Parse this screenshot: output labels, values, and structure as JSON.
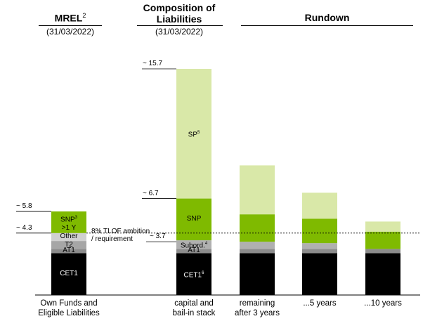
{
  "headers": {
    "mrel_title": "MREL",
    "mrel_sup": "2",
    "mrel_date": "(31/03/2022)",
    "comp_title_1": "Composition of",
    "comp_title_2": "Liabilities",
    "comp_date": "(31/03/2022)",
    "rundown_title": "Rundown"
  },
  "annotation": {
    "line1": "8% TLOF ambition",
    "line2": "/ requirement",
    "value": 4.3
  },
  "colors": {
    "cet1": "#000000",
    "at1": "#8c8c8c",
    "t2": "#a6a6a6",
    "other": "#d0d0d0",
    "subord": "#b0b0b0",
    "snp": "#7fba00",
    "sp": "#d9e8a8"
  },
  "chart_data": {
    "type": "bar",
    "stacked": true,
    "categories": [
      "Own Funds and\nEligible Liabilities",
      "capital and\nbail-in stack",
      "remaining\nafter 3 years",
      "...5 years",
      "...10 years"
    ],
    "ylim": [
      0,
      16.5
    ],
    "grid": false,
    "y_markers": [
      {
        "label": "~ 15.7",
        "value": 15.7
      },
      {
        "label": "~ 6.7",
        "value": 6.7
      },
      {
        "label": "~ 5.8",
        "value": 5.8
      },
      {
        "label": "~ 4.3",
        "value": 4.3
      },
      {
        "label": "~ 3.7",
        "value": 3.7
      }
    ],
    "bars": [
      {
        "segments": [
          {
            "key": "cet1",
            "label": "CET1",
            "value": 2.9,
            "text": "light"
          },
          {
            "key": "at1",
            "label": "AT1",
            "value": 0.3,
            "text": "dark"
          },
          {
            "key": "t2",
            "label": "T2",
            "value": 0.55,
            "text": "dark"
          },
          {
            "key": "other",
            "label": "Other",
            "value": 0.55,
            "text": "dark"
          },
          {
            "key": "snp",
            "label": "SNP",
            "sup": "3",
            "label2": ">1 Y",
            "value": 1.5,
            "text": "dark"
          }
        ]
      },
      {
        "segments": [
          {
            "key": "cet1",
            "label": "CET1",
            "sup": "6",
            "value": 2.9,
            "text": "light"
          },
          {
            "key": "at1",
            "label": "AT1",
            "value": 0.3,
            "text": "dark"
          },
          {
            "key": "subord",
            "label": "Subord.",
            "sup": "4",
            "value": 0.6,
            "text": "dark"
          },
          {
            "key": "snp",
            "label": "SNP",
            "value": 2.9,
            "text": "dark"
          },
          {
            "key": "sp",
            "label": "SP",
            "sup": "5",
            "value": 9.0,
            "text": "dark"
          }
        ]
      },
      {
        "segments": [
          {
            "key": "cet1",
            "value": 2.9
          },
          {
            "key": "at1",
            "value": 0.3
          },
          {
            "key": "subord",
            "value": 0.5
          },
          {
            "key": "snp",
            "value": 1.9
          },
          {
            "key": "sp",
            "value": 3.4
          }
        ]
      },
      {
        "segments": [
          {
            "key": "cet1",
            "value": 2.9
          },
          {
            "key": "at1",
            "value": 0.3
          },
          {
            "key": "subord",
            "value": 0.4
          },
          {
            "key": "snp",
            "value": 1.7
          },
          {
            "key": "sp",
            "value": 1.8
          }
        ]
      },
      {
        "segments": [
          {
            "key": "cet1",
            "value": 2.9
          },
          {
            "key": "at1",
            "value": 0.3
          },
          {
            "key": "snp",
            "value": 1.2
          },
          {
            "key": "sp",
            "value": 0.7
          }
        ]
      }
    ]
  }
}
